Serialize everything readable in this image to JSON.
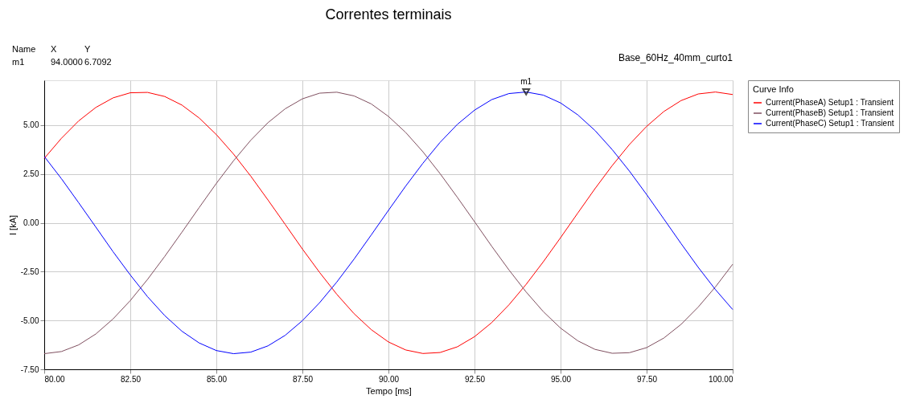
{
  "chart_data": {
    "type": "line",
    "title": "Correntes terminais",
    "xlabel": "Tempo [ms]",
    "ylabel": "I [kA]",
    "legend_title": "Curve Info",
    "x": [
      80.0,
      80.5,
      81.0,
      81.5,
      82.0,
      82.5,
      83.0,
      83.5,
      84.0,
      84.5,
      85.0,
      85.5,
      86.0,
      86.5,
      87.0,
      87.5,
      88.0,
      88.5,
      89.0,
      89.5,
      90.0,
      90.5,
      91.0,
      91.5,
      92.0,
      92.5,
      93.0,
      93.5,
      94.0,
      94.5,
      95.0,
      95.5,
      96.0,
      96.5,
      97.0,
      97.5,
      98.0,
      98.5,
      99.0,
      99.5,
      100.0
    ],
    "series": [
      {
        "name": "Current(PhaseA) Setup1 : Transient",
        "color": "#ff0000",
        "values": [
          3.3,
          4.33,
          5.22,
          5.91,
          6.4,
          6.66,
          6.68,
          6.47,
          6.03,
          5.37,
          4.52,
          3.52,
          2.39,
          1.17,
          -0.08,
          -1.34,
          -2.54,
          -3.66,
          -4.65,
          -5.47,
          -6.1,
          -6.51,
          -6.69,
          -6.64,
          -6.35,
          -5.83,
          -5.11,
          -4.2,
          -3.15,
          -1.99,
          -0.76,
          0.5,
          1.75,
          2.93,
          4.01,
          4.94,
          5.7,
          6.26,
          6.6,
          6.7,
          6.57
        ]
      },
      {
        "name": "Current(PhaseB) Setup1 : Transient",
        "color": "#7f4f5f",
        "values": [
          -6.7,
          -6.59,
          -6.25,
          -5.69,
          -4.92,
          -3.98,
          -2.9,
          -1.72,
          -0.48,
          0.78,
          2.02,
          3.18,
          4.23,
          5.13,
          5.84,
          6.35,
          6.64,
          6.69,
          6.5,
          6.09,
          5.45,
          4.63,
          3.64,
          2.52,
          1.31,
          0.06,
          -1.2,
          -2.41,
          -3.54,
          -4.55,
          -5.39,
          -6.04,
          -6.48,
          -6.68,
          -6.65,
          -6.39,
          -5.9,
          -5.2,
          -4.31,
          -3.28,
          -2.12
        ]
      },
      {
        "name": "Current(PhaseC) Setup1 : Transient",
        "color": "#0000ff",
        "values": [
          3.4,
          2.26,
          1.03,
          -0.22,
          -1.48,
          -2.67,
          -3.78,
          -4.75,
          -5.55,
          -6.15,
          -6.54,
          -6.7,
          -6.62,
          -6.3,
          -5.76,
          -5.01,
          -4.09,
          -3.03,
          -1.86,
          -0.62,
          0.64,
          1.88,
          3.05,
          4.12,
          5.04,
          5.77,
          6.31,
          6.62,
          6.7,
          6.54,
          6.14,
          5.53,
          4.73,
          3.75,
          2.65,
          1.45,
          0.2,
          -1.06,
          -2.28,
          -3.42,
          -4.44
        ]
      }
    ],
    "xlim": [
      80,
      100
    ],
    "xticks": [
      {
        "value": 80,
        "label": "80.00"
      },
      {
        "value": 82.5,
        "label": "82.50"
      },
      {
        "value": 85,
        "label": "85.00"
      },
      {
        "value": 87.5,
        "label": "87.50"
      },
      {
        "value": 90,
        "label": "90.00"
      },
      {
        "value": 92.5,
        "label": "92.50"
      },
      {
        "value": 95,
        "label": "95.00"
      },
      {
        "value": 97.5,
        "label": "97.50"
      },
      {
        "value": 100,
        "label": "100.00"
      }
    ],
    "ylim": [
      -7.5,
      7.3
    ],
    "yticks": [
      {
        "value": -7.5,
        "label": "-7.50"
      },
      {
        "value": -5,
        "label": "-5.00"
      },
      {
        "value": -2.5,
        "label": "-2.50"
      },
      {
        "value": 0,
        "label": "0.00"
      },
      {
        "value": 2.5,
        "label": "2.50"
      },
      {
        "value": 5,
        "label": "5.00"
      }
    ],
    "grid": true,
    "legend": "right",
    "marker": "none",
    "line_style": "solid",
    "annotations": [
      "Name",
      "X",
      "Y",
      "m1",
      "94.0000",
      "6.7092",
      "Base_60Hz_40mm_curto1",
      {
        "text": "m1",
        "x": 94,
        "y": 6.7092
      }
    ]
  }
}
